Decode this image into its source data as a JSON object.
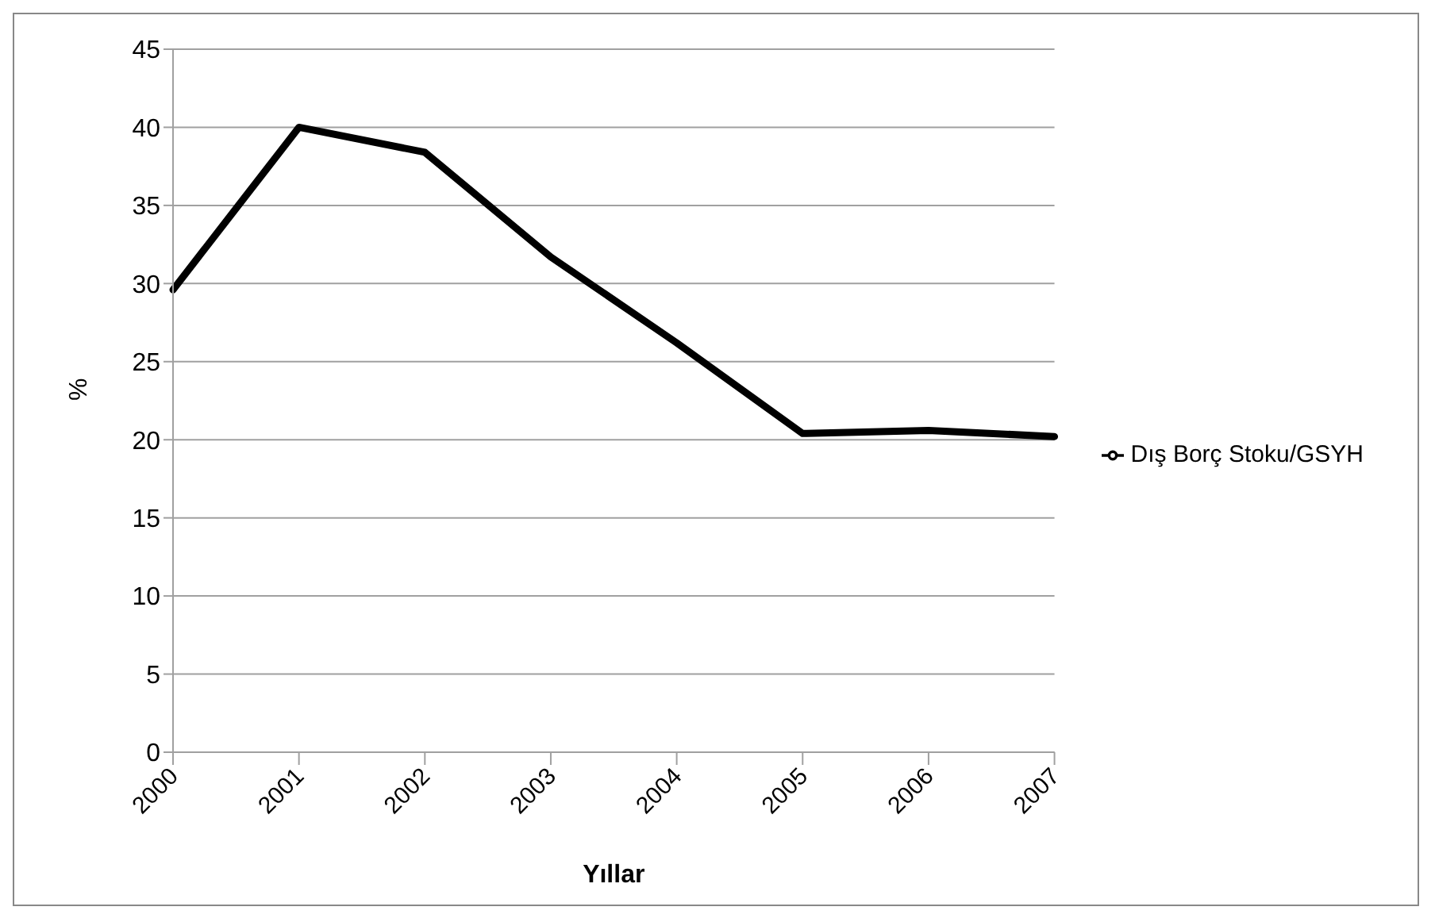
{
  "chart_data": {
    "type": "line",
    "xlabel": "Yıllar",
    "ylabel": "%",
    "categories": [
      "2000",
      "2001",
      "2002",
      "2003",
      "2004",
      "2005",
      "2006",
      "2007"
    ],
    "series": [
      {
        "name": "Dış Borç Stoku/GSYH",
        "color": "#000000",
        "values": [
          29.6,
          40.0,
          38.4,
          31.7,
          26.2,
          20.4,
          20.6,
          20.2
        ]
      }
    ],
    "ylim": [
      0,
      45
    ],
    "yticks": [
      0,
      5,
      10,
      15,
      20,
      25,
      30,
      35,
      40,
      45
    ],
    "grid": "y",
    "legend": "right",
    "marker": "none",
    "line_style": "solid"
  }
}
